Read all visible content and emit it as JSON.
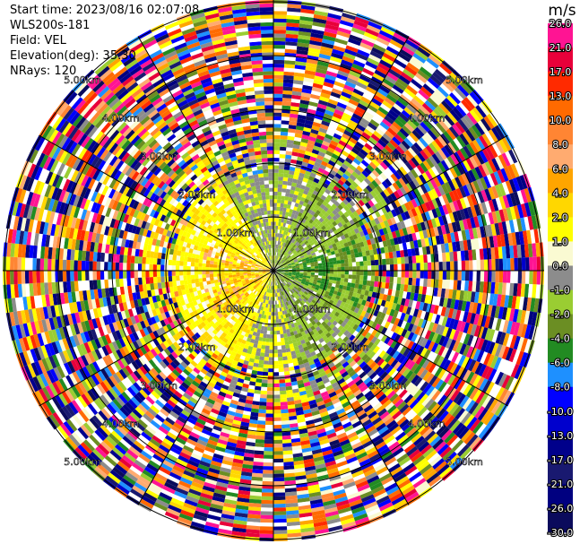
{
  "header": {
    "start_time": "Start time: 2023/08/16 02:07:08",
    "instrument": "WLS200s-181",
    "field": "Field: VEL",
    "elevation": "Elevation(deg): 35.30",
    "nrays": "NRays: 120"
  },
  "chart_data": {
    "type": "heatmap",
    "subtype": "polar-ppi",
    "field": "VEL",
    "units": "m/s",
    "nrays": 120,
    "elevation_deg": 35.3,
    "range_ring_labels": [
      "1.00km",
      "2.00km",
      "3.00km",
      "4.00km",
      "5.00km"
    ],
    "colorbar": {
      "title": "m/s",
      "tick_labels": [
        "26.0",
        "21.0",
        "17.0",
        "13.0",
        "10.0",
        "8.0",
        "6.0",
        "4.0",
        "2.0",
        "1.0",
        "0.0",
        "-1.0",
        "-2.0",
        "-4.0",
        "-6.0",
        "-8.0",
        "-10.0",
        "-13.0",
        "-17.0",
        "-21.0",
        "-26.0",
        "-30.0"
      ],
      "colors": [
        "#ff1493",
        "#e8003a",
        "#ff2a00",
        "#ff6a00",
        "#ff8533",
        "#ffab70",
        "#ffa500",
        "#ffd700",
        "#ffff00",
        "#fafad2",
        "#8c8c8c",
        "#9acd32",
        "#6b8e23",
        "#228b22",
        "#1e90ff",
        "#0000ff",
        "#0000cd",
        "#00008b",
        "#191970",
        "#000080",
        "#0b0b5c"
      ]
    },
    "velocity_summary": {
      "west_sector": "2.0 to 6.0",
      "east_sector": "-1.0 to -6.0",
      "north_south": "0.0 to -1.0",
      "outer_ranges": "noise"
    }
  }
}
